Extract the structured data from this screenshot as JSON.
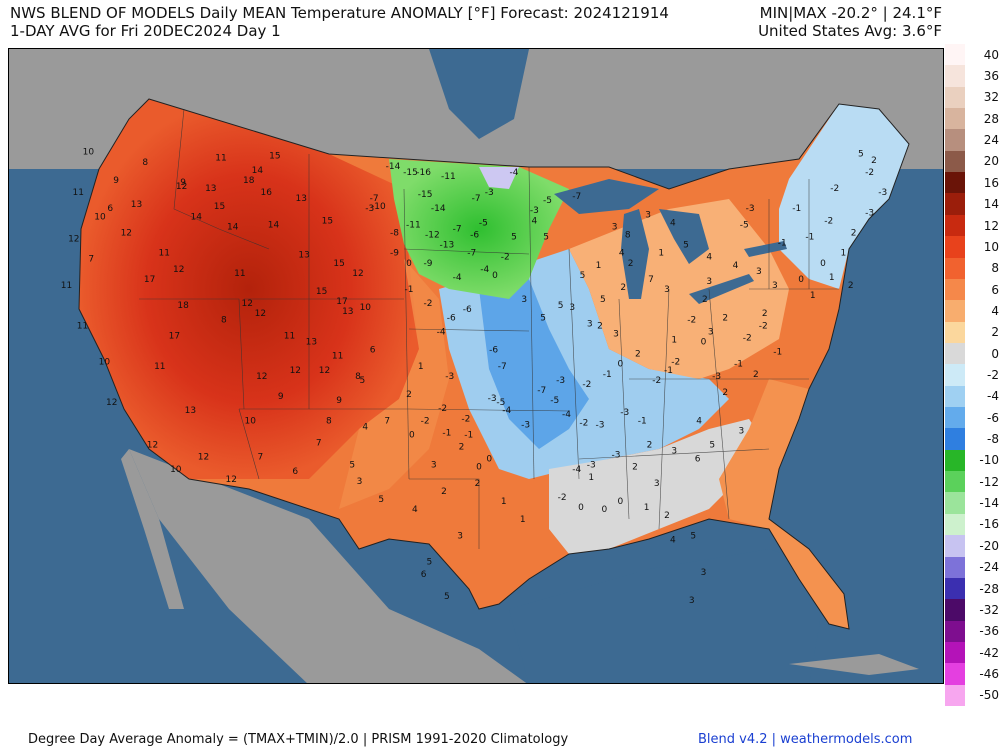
{
  "header": {
    "title_line1": "NWS BLEND OF MODELS Daily MEAN Temperature ANOMALY [°F] Forecast: 2024121914",
    "title_line2": "1-DAY AVG for Fri 20DEC2024 Day 1",
    "stats_line1": "MIN|MAX -20.2° | 24.1°F",
    "stats_line2": "United States Avg: 3.6°F"
  },
  "footer": {
    "left": "Degree Day Average Anomaly = (TMAX+TMIN)/2.0 | PRISM 1991-2020 Climatology",
    "right": "Blend v4.2 | weathermodels.com"
  },
  "colors": {
    "ocean": "#3d6a92",
    "land_outside": "#9a9a9a",
    "warm_strong": "#c92a0e",
    "warm_mid": "#ef7a3b",
    "warm_light": "#f7b777",
    "neutral": "#d8d8d8",
    "cool_light": "#bfe0f5",
    "cool_mid": "#5da5e8",
    "cold_green": "#34c83c"
  },
  "legend": {
    "items": [
      {
        "label": "40",
        "color": "#fff5f5"
      },
      {
        "label": "36",
        "color": "#f6e4dc"
      },
      {
        "label": "32",
        "color": "#ead0bf"
      },
      {
        "label": "28",
        "color": "#d8b49e"
      },
      {
        "label": "24",
        "color": "#b78f7e"
      },
      {
        "label": "20",
        "color": "#8c5a49"
      },
      {
        "label": "16",
        "color": "#6a1408"
      },
      {
        "label": "14",
        "color": "#9b1e0b"
      },
      {
        "label": "12",
        "color": "#c82a10"
      },
      {
        "label": "10",
        "color": "#e8421c"
      },
      {
        "label": "8",
        "color": "#f1622f"
      },
      {
        "label": "6",
        "color": "#f5884a"
      },
      {
        "label": "4",
        "color": "#f8ad6e"
      },
      {
        "label": "2",
        "color": "#fbd79d"
      },
      {
        "label": "0",
        "color": "#d9d9d9"
      },
      {
        "label": "-2",
        "color": "#cdeaf7"
      },
      {
        "label": "-4",
        "color": "#9fd0f2"
      },
      {
        "label": "-6",
        "color": "#63abec"
      },
      {
        "label": "-8",
        "color": "#2f7fe0"
      },
      {
        "label": "-10",
        "color": "#28b628"
      },
      {
        "label": "-12",
        "color": "#5bd15b"
      },
      {
        "label": "-14",
        "color": "#9be49b"
      },
      {
        "label": "-16",
        "color": "#cdf1cd"
      },
      {
        "label": "-20",
        "color": "#c7c3f1"
      },
      {
        "label": "-24",
        "color": "#7d72d9"
      },
      {
        "label": "-28",
        "color": "#3b2fb0"
      },
      {
        "label": "-32",
        "color": "#4c0a68"
      },
      {
        "label": "-36",
        "color": "#7e0e8f"
      },
      {
        "label": "-42",
        "color": "#b413b8"
      },
      {
        "label": "-46",
        "color": "#e43fe0"
      },
      {
        "label": "-50",
        "color": "#f7a6ef"
      }
    ]
  },
  "map_labels": [
    {
      "v": "10",
      "lon": -122.8,
      "lat": 48.6
    },
    {
      "v": "11",
      "lon": -123.5,
      "lat": 46.6
    },
    {
      "v": "12",
      "lon": -123.8,
      "lat": 44.3
    },
    {
      "v": "11",
      "lon": -124.3,
      "lat": 42.0
    },
    {
      "v": "11",
      "lon": -123.2,
      "lat": 40.0
    },
    {
      "v": "10",
      "lon": -121.7,
      "lat": 38.2
    },
    {
      "v": "12",
      "lon": -121.2,
      "lat": 36.2
    },
    {
      "v": "12",
      "lon": -118.4,
      "lat": 34.1
    },
    {
      "v": "10",
      "lon": -116.8,
      "lat": 32.9
    },
    {
      "v": "12",
      "lon": -114.9,
      "lat": 33.5
    },
    {
      "v": "12",
      "lon": -113.0,
      "lat": 32.4
    },
    {
      "v": "13",
      "lon": -115.8,
      "lat": 35.8
    },
    {
      "v": "10",
      "lon": -111.7,
      "lat": 35.3
    },
    {
      "v": "11",
      "lon": -117.9,
      "lat": 38.0
    },
    {
      "v": "17",
      "lon": -116.9,
      "lat": 39.5
    },
    {
      "v": "18",
      "lon": -116.3,
      "lat": 41.0
    },
    {
      "v": "17",
      "lon": -118.6,
      "lat": 42.3
    },
    {
      "v": "11",
      "lon": -117.6,
      "lat": 43.6
    },
    {
      "v": "12",
      "lon": -116.6,
      "lat": 42.8
    },
    {
      "v": "14",
      "lon": -115.4,
      "lat": 45.4
    },
    {
      "v": "12",
      "lon": -116.4,
      "lat": 46.9
    },
    {
      "v": "13",
      "lon": -114.4,
      "lat": 46.8
    },
    {
      "v": "11",
      "lon": -113.7,
      "lat": 48.3
    },
    {
      "v": "14",
      "lon": -111.2,
      "lat": 47.7
    },
    {
      "v": "15",
      "lon": -110.0,
      "lat": 48.4
    },
    {
      "v": "18",
      "lon": -111.8,
      "lat": 47.2
    },
    {
      "v": "16",
      "lon": -110.6,
      "lat": 46.6
    },
    {
      "v": "14",
      "lon": -110.1,
      "lat": 45.0
    },
    {
      "v": "13",
      "lon": -108.2,
      "lat": 46.3
    },
    {
      "v": "15",
      "lon": -106.4,
      "lat": 45.2
    },
    {
      "v": "13",
      "lon": -108.0,
      "lat": 43.5
    },
    {
      "v": "15",
      "lon": -105.6,
      "lat": 43.1
    },
    {
      "v": "12",
      "lon": -104.3,
      "lat": 42.6
    },
    {
      "v": "15",
      "lon": -106.8,
      "lat": 41.7
    },
    {
      "v": "17",
      "lon": -105.4,
      "lat": 41.2
    },
    {
      "v": "13",
      "lon": -105.0,
      "lat": 40.7
    },
    {
      "v": "12",
      "lon": -111.0,
      "lat": 40.6
    },
    {
      "v": "11",
      "lon": -109.0,
      "lat": 39.5
    },
    {
      "v": "13",
      "lon": -107.5,
      "lat": 39.2
    },
    {
      "v": "11",
      "lon": -105.7,
      "lat": 38.5
    },
    {
      "v": "12",
      "lon": -108.6,
      "lat": 37.8
    },
    {
      "v": "12",
      "lon": -106.6,
      "lat": 37.8
    },
    {
      "v": "9",
      "lon": -105.6,
      "lat": 36.3
    },
    {
      "v": "8",
      "lon": -104.3,
      "lat": 37.5
    },
    {
      "v": "10",
      "lon": -103.8,
      "lat": 40.9
    },
    {
      "v": "5",
      "lon": -104.0,
      "lat": 37.3
    },
    {
      "v": "6",
      "lon": -103.3,
      "lat": 38.8
    },
    {
      "v": "4",
      "lon": -103.8,
      "lat": 35.0
    },
    {
      "v": "5",
      "lon": -104.7,
      "lat": 33.1
    },
    {
      "v": "3",
      "lon": -104.2,
      "lat": 32.3
    },
    {
      "v": "7",
      "lon": -102.3,
      "lat": 35.3
    },
    {
      "v": "5",
      "lon": -102.7,
      "lat": 31.4
    },
    {
      "v": "4",
      "lon": -100.4,
      "lat": 30.9
    },
    {
      "v": "2",
      "lon": -98.4,
      "lat": 31.8
    },
    {
      "v": "3",
      "lon": -99.1,
      "lat": 33.1
    },
    {
      "v": "2",
      "lon": -97.2,
      "lat": 34.0
    },
    {
      "v": "3",
      "lon": -97.3,
      "lat": 29.6
    },
    {
      "v": "5",
      "lon": -99.4,
      "lat": 28.3
    },
    {
      "v": "6",
      "lon": -99.8,
      "lat": 27.7
    },
    {
      "v": "5",
      "lon": -98.2,
      "lat": 26.6
    },
    {
      "v": "0",
      "lon": -100.6,
      "lat": 34.6
    },
    {
      "v": "-2",
      "lon": -99.7,
      "lat": 35.3
    },
    {
      "v": "-2",
      "lon": -98.5,
      "lat": 35.9
    },
    {
      "v": "-1",
      "lon": -98.2,
      "lat": 34.7
    },
    {
      "v": "0",
      "lon": -96.0,
      "lat": 33.0
    },
    {
      "v": "2",
      "lon": -96.1,
      "lat": 32.2
    },
    {
      "v": "1",
      "lon": -94.3,
      "lat": 31.3
    },
    {
      "v": "1",
      "lon": -93.0,
      "lat": 30.4
    },
    {
      "v": "0",
      "lon": -95.3,
      "lat": 33.4
    },
    {
      "v": "-1",
      "lon": -96.7,
      "lat": 34.6
    },
    {
      "v": "-2",
      "lon": -96.9,
      "lat": 35.4
    },
    {
      "v": "-3",
      "lon": -95.1,
      "lat": 36.4
    },
    {
      "v": "-4",
      "lon": -94.1,
      "lat": 35.8
    },
    {
      "v": "-5",
      "lon": -94.5,
      "lat": 36.2
    },
    {
      "v": "-3",
      "lon": -92.8,
      "lat": 35.1
    },
    {
      "v": "-7",
      "lon": -94.4,
      "lat": 38.0
    },
    {
      "v": "-6",
      "lon": -95.0,
      "lat": 38.8
    },
    {
      "v": "-3",
      "lon": -98.0,
      "lat": 37.5
    },
    {
      "v": "1",
      "lon": -100.0,
      "lat": 38.0
    },
    {
      "v": "2",
      "lon": -100.8,
      "lat": 36.6
    },
    {
      "v": "-4",
      "lon": -98.6,
      "lat": 39.7
    },
    {
      "v": "-6",
      "lon": -97.9,
      "lat": 40.4
    },
    {
      "v": "-6",
      "lon": -96.8,
      "lat": 40.8
    },
    {
      "v": "-4",
      "lon": -97.5,
      "lat": 42.4
    },
    {
      "v": "-4",
      "lon": -95.6,
      "lat": 42.8
    },
    {
      "v": "-7",
      "lon": -96.5,
      "lat": 43.6
    },
    {
      "v": "-2",
      "lon": -99.5,
      "lat": 41.1
    },
    {
      "v": "-1",
      "lon": -100.8,
      "lat": 41.8
    },
    {
      "v": "0",
      "lon": -100.8,
      "lat": 43.1
    },
    {
      "v": "-3",
      "lon": -103.5,
      "lat": 45.8
    },
    {
      "v": "-7",
      "lon": -103.2,
      "lat": 46.3
    },
    {
      "v": "-14",
      "lon": -101.9,
      "lat": 47.9
    },
    {
      "v": "-15",
      "lon": -100.7,
      "lat": 47.6
    },
    {
      "v": "-16",
      "lon": -99.8,
      "lat": 47.6
    },
    {
      "v": "-11",
      "lon": -98.1,
      "lat": 47.4
    },
    {
      "v": "-15",
      "lon": -99.7,
      "lat": 46.5
    },
    {
      "v": "-14",
      "lon": -98.8,
      "lat": 45.8
    },
    {
      "v": "-11",
      "lon": -100.5,
      "lat": 45.0
    },
    {
      "v": "-12",
      "lon": -99.2,
      "lat": 44.5
    },
    {
      "v": "-13",
      "lon": -98.2,
      "lat": 44.0
    },
    {
      "v": "-10",
      "lon": -102.9,
      "lat": 45.9
    },
    {
      "v": "-8",
      "lon": -101.8,
      "lat": 44.6
    },
    {
      "v": "-9",
      "lon": -101.8,
      "lat": 43.6
    },
    {
      "v": "-9",
      "lon": -99.5,
      "lat": 43.1
    },
    {
      "v": "-7",
      "lon": -97.5,
      "lat": 44.8
    },
    {
      "v": "-6",
      "lon": -96.3,
      "lat": 44.5
    },
    {
      "v": "-5",
      "lon": -95.7,
      "lat": 45.1
    },
    {
      "v": "-7",
      "lon": -96.2,
      "lat": 46.3
    },
    {
      "v": "-3",
      "lon": -95.3,
      "lat": 46.6
    },
    {
      "v": "-2",
      "lon": -94.2,
      "lat": 43.4
    },
    {
      "v": "0",
      "lon": -94.9,
      "lat": 42.5
    },
    {
      "v": "5",
      "lon": -93.6,
      "lat": 44.4
    },
    {
      "v": "4",
      "lon": -92.2,
      "lat": 45.2
    },
    {
      "v": "5",
      "lon": -91.4,
      "lat": 44.4
    },
    {
      "v": "3",
      "lon": -92.9,
      "lat": 41.3
    },
    {
      "v": "5",
      "lon": -91.6,
      "lat": 40.4
    },
    {
      "v": "5",
      "lon": -90.4,
      "lat": 41.0
    },
    {
      "v": "3",
      "lon": -89.6,
      "lat": 40.9
    },
    {
      "v": "3",
      "lon": -88.4,
      "lat": 40.1
    },
    {
      "v": "5",
      "lon": -88.9,
      "lat": 42.5
    },
    {
      "v": "5",
      "lon": -87.5,
      "lat": 41.3
    },
    {
      "v": "2",
      "lon": -87.7,
      "lat": 40.0
    },
    {
      "v": "3",
      "lon": -86.6,
      "lat": 39.6
    },
    {
      "v": "1",
      "lon": -87.8,
      "lat": 43.0
    },
    {
      "v": "4",
      "lon": -86.2,
      "lat": 43.6
    },
    {
      "v": "3",
      "lon": -86.7,
      "lat": 44.9
    },
    {
      "v": "2",
      "lon": -85.6,
      "lat": 43.1
    },
    {
      "v": "7",
      "lon": -84.2,
      "lat": 42.3
    },
    {
      "v": "3",
      "lon": -83.1,
      "lat": 41.8
    },
    {
      "v": "1",
      "lon": -82.6,
      "lat": 39.3
    },
    {
      "v": "2",
      "lon": -85.1,
      "lat": 38.6
    },
    {
      "v": "0",
      "lon": -86.3,
      "lat": 38.1
    },
    {
      "v": "-1",
      "lon": -87.2,
      "lat": 37.6
    },
    {
      "v": "-2",
      "lon": -88.6,
      "lat": 37.1
    },
    {
      "v": "-3",
      "lon": -90.4,
      "lat": 37.3
    },
    {
      "v": "-5",
      "lon": -90.8,
      "lat": 36.3
    },
    {
      "v": "-7",
      "lon": -91.7,
      "lat": 36.8
    },
    {
      "v": "-4",
      "lon": -90.0,
      "lat": 35.6
    },
    {
      "v": "-2",
      "lon": -88.8,
      "lat": 35.2
    },
    {
      "v": "-3",
      "lon": -87.7,
      "lat": 35.1
    },
    {
      "v": "-3",
      "lon": -86.0,
      "lat": 35.7
    },
    {
      "v": "-1",
      "lon": -84.8,
      "lat": 35.3
    },
    {
      "v": "-2",
      "lon": -83.8,
      "lat": 37.3
    },
    {
      "v": "-1",
      "lon": -83.0,
      "lat": 37.8
    },
    {
      "v": "-2",
      "lon": -82.5,
      "lat": 38.2
    },
    {
      "v": "0",
      "lon": -80.6,
      "lat": 39.2
    },
    {
      "v": "-2",
      "lon": -81.4,
      "lat": 40.3
    },
    {
      "v": "2",
      "lon": -80.5,
      "lat": 41.3
    },
    {
      "v": "3",
      "lon": -80.2,
      "lat": 42.2
    },
    {
      "v": "4",
      "lon": -78.4,
      "lat": 43.0
    },
    {
      "v": "3",
      "lon": -76.8,
      "lat": 42.7
    },
    {
      "v": "3",
      "lon": -75.7,
      "lat": 42.0
    },
    {
      "v": "-1",
      "lon": -75.2,
      "lat": 44.1
    },
    {
      "v": "2",
      "lon": -76.4,
      "lat": 40.6
    },
    {
      "v": "-2",
      "lon": -77.6,
      "lat": 39.4
    },
    {
      "v": "-1",
      "lon": -75.5,
      "lat": 38.7
    },
    {
      "v": "2",
      "lon": -77.0,
      "lat": 37.6
    },
    {
      "v": "-1",
      "lon": -78.2,
      "lat": 38.1
    },
    {
      "v": "-3",
      "lon": -79.7,
      "lat": 37.5
    },
    {
      "v": "2",
      "lon": -79.1,
      "lat": 36.7
    },
    {
      "v": "4",
      "lon": -80.9,
      "lat": 35.3
    },
    {
      "v": "5",
      "lon": -80.0,
      "lat": 34.1
    },
    {
      "v": "6",
      "lon": -81.0,
      "lat": 33.4
    },
    {
      "v": "3",
      "lon": -82.6,
      "lat": 33.8
    },
    {
      "v": "3",
      "lon": -83.8,
      "lat": 32.2
    },
    {
      "v": "2",
      "lon": -85.3,
      "lat": 33.0
    },
    {
      "v": "-3",
      "lon": -86.6,
      "lat": 33.6
    },
    {
      "v": "-3",
      "lon": -88.3,
      "lat": 33.1
    },
    {
      "v": "-4",
      "lon": -89.3,
      "lat": 32.9
    },
    {
      "v": "-2",
      "lon": -90.3,
      "lat": 31.5
    },
    {
      "v": "0",
      "lon": -89.0,
      "lat": 31.0
    },
    {
      "v": "0",
      "lon": -87.4,
      "lat": 30.9
    },
    {
      "v": "0",
      "lon": -86.3,
      "lat": 31.3
    },
    {
      "v": "1",
      "lon": -84.5,
      "lat": 31.0
    },
    {
      "v": "2",
      "lon": -83.1,
      "lat": 30.6
    },
    {
      "v": "4",
      "lon": -82.7,
      "lat": 29.4
    },
    {
      "v": "5",
      "lon": -81.3,
      "lat": 29.6
    },
    {
      "v": "3",
      "lon": -80.6,
      "lat": 27.8
    },
    {
      "v": "3",
      "lon": -81.4,
      "lat": 26.4
    },
    {
      "v": "1",
      "lon": -88.3,
      "lat": 32.5
    },
    {
      "v": "2",
      "lon": -84.3,
      "lat": 34.1
    },
    {
      "v": "3",
      "lon": -78.0,
      "lat": 34.8
    },
    {
      "v": "-2",
      "lon": -76.5,
      "lat": 40.0
    },
    {
      "v": "0",
      "lon": -73.9,
      "lat": 42.3
    },
    {
      "v": "1",
      "lon": -73.1,
      "lat": 41.5
    },
    {
      "v": "0",
      "lon": -72.4,
      "lat": 43.1
    },
    {
      "v": "1",
      "lon": -71.0,
      "lat": 43.6
    },
    {
      "v": "2",
      "lon": -70.3,
      "lat": 44.6
    },
    {
      "v": "-1",
      "lon": -73.3,
      "lat": 44.4
    },
    {
      "v": "-2",
      "lon": -72.0,
      "lat": 45.2
    },
    {
      "v": "-3",
      "lon": -69.2,
      "lat": 45.6
    },
    {
      "v": "-1",
      "lon": -74.2,
      "lat": 45.8
    },
    {
      "v": "-2",
      "lon": -71.6,
      "lat": 46.8
    },
    {
      "v": "-2",
      "lon": -69.2,
      "lat": 47.6
    },
    {
      "v": "5",
      "lon": -69.8,
      "lat": 48.5
    },
    {
      "v": "2",
      "lon": -68.9,
      "lat": 48.2
    },
    {
      "v": "-3",
      "lon": -68.3,
      "lat": 46.6
    },
    {
      "v": "-3",
      "lon": -77.4,
      "lat": 45.8
    },
    {
      "v": "-5",
      "lon": -77.8,
      "lat": 45.0
    },
    {
      "v": "1",
      "lon": -71.8,
      "lat": 42.4
    },
    {
      "v": "2",
      "lon": -70.5,
      "lat": 42.0
    },
    {
      "v": "-7",
      "lon": -89.3,
      "lat": 46.4
    },
    {
      "v": "-5",
      "lon": -91.3,
      "lat": 46.2
    },
    {
      "v": "-3",
      "lon": -92.2,
      "lat": 45.7
    },
    {
      "v": "-4",
      "lon": -93.6,
      "lat": 47.6
    },
    {
      "v": "3",
      "lon": -84.4,
      "lat": 45.5
    },
    {
      "v": "4",
      "lon": -82.7,
      "lat": 45.1
    },
    {
      "v": "5",
      "lon": -81.8,
      "lat": 44.0
    },
    {
      "v": "4",
      "lon": -80.2,
      "lat": 43.4
    },
    {
      "v": "2",
      "lon": -79.1,
      "lat": 40.4
    },
    {
      "v": "3",
      "lon": -80.1,
      "lat": 39.7
    },
    {
      "v": "2",
      "lon": -86.1,
      "lat": 41.9
    },
    {
      "v": "8",
      "lon": -85.8,
      "lat": 44.5
    },
    {
      "v": "1",
      "lon": -83.5,
      "lat": 43.6
    },
    {
      "v": "9",
      "lon": -120.9,
      "lat": 47.2
    },
    {
      "v": "9",
      "lon": -116.3,
      "lat": 47.1
    },
    {
      "v": "8",
      "lon": -118.9,
      "lat": 48.1
    },
    {
      "v": "7",
      "lon": -122.6,
      "lat": 43.3
    },
    {
      "v": "6",
      "lon": -121.3,
      "lat": 45.8
    },
    {
      "v": "12",
      "lon": -120.2,
      "lat": 44.6
    },
    {
      "v": "13",
      "lon": -119.5,
      "lat": 46.0
    },
    {
      "v": "10",
      "lon": -122.0,
      "lat": 45.4
    },
    {
      "v": "14",
      "lon": -112.9,
      "lat": 44.9
    },
    {
      "v": "15",
      "lon": -113.8,
      "lat": 45.9
    },
    {
      "v": "11",
      "lon": -112.4,
      "lat": 42.6
    },
    {
      "v": "12",
      "lon": -111.9,
      "lat": 41.1
    },
    {
      "v": "8",
      "lon": -113.5,
      "lat": 40.3
    },
    {
      "v": "12",
      "lon": -110.9,
      "lat": 37.5
    },
    {
      "v": "9",
      "lon": -109.6,
      "lat": 36.5
    },
    {
      "v": "7",
      "lon": -111.0,
      "lat": 33.5
    },
    {
      "v": "6",
      "lon": -108.6,
      "lat": 32.8
    },
    {
      "v": "7",
      "lon": -107.0,
      "lat": 34.2
    },
    {
      "v": "8",
      "lon": -106.3,
      "lat": 35.3
    }
  ]
}
